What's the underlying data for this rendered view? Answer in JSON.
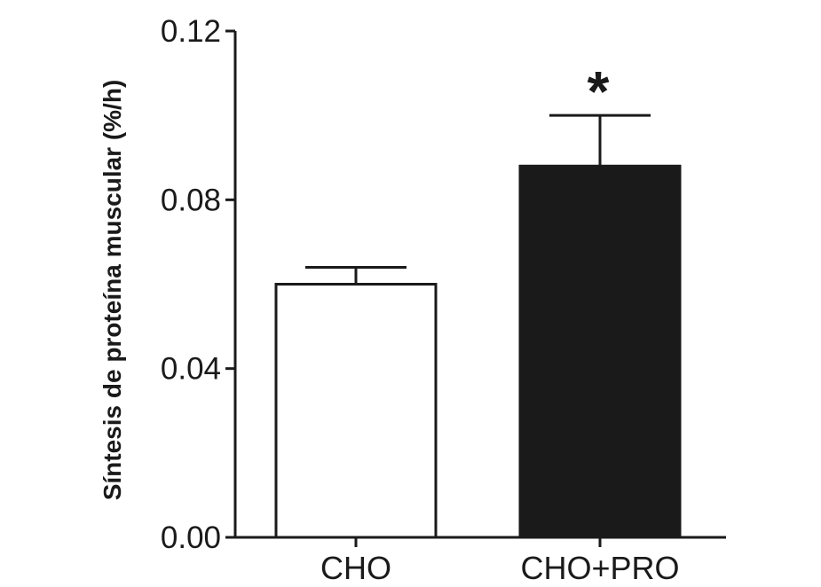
{
  "chart_data": {
    "type": "bar",
    "categories": [
      "CHO",
      "CHO+PRO"
    ],
    "values": [
      0.06,
      0.088
    ],
    "error_upper": [
      0.064,
      0.1
    ],
    "fill_colors": [
      "#ffffff",
      "#1a1a1a"
    ],
    "edge_color": "#1a1a1a",
    "ylabel": "Síntesis de proteína muscular (%/h)",
    "ylim": [
      0,
      0.12
    ],
    "yticks": [
      0.0,
      0.04,
      0.08,
      0.12
    ],
    "ytick_labels": [
      "0.00",
      "0.04",
      "0.08",
      "0.12"
    ],
    "annotations": [
      {
        "category": "CHO+PRO",
        "text": "*"
      }
    ],
    "grid": false
  }
}
